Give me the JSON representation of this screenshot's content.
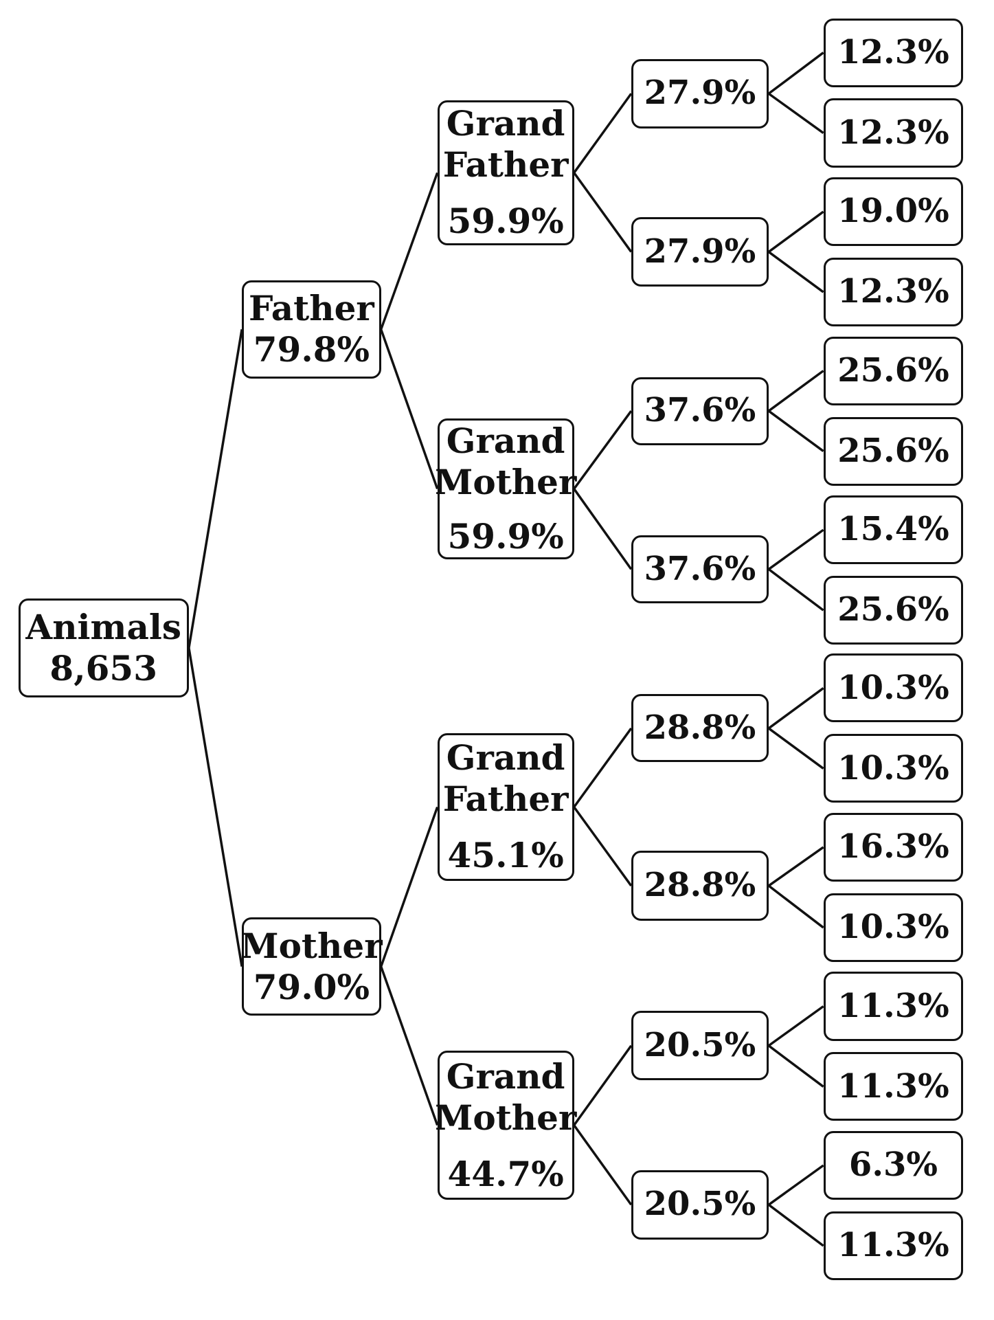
{
  "root": {
    "label": "Animals",
    "value": "8,653"
  },
  "parents": [
    {
      "label": "Father",
      "value": "79.8%",
      "grandparents": [
        {
          "label_1": "Grand",
          "label_2": "Father",
          "value": "59.9%",
          "great": [
            {
              "value": "27.9%",
              "leaves": [
                "12.3%",
                "12.3%"
              ]
            },
            {
              "value": "27.9%",
              "leaves": [
                "19.0%",
                "12.3%"
              ]
            }
          ]
        },
        {
          "label_1": "Grand",
          "label_2": "Mother",
          "value": "59.9%",
          "great": [
            {
              "value": "37.6%",
              "leaves": [
                "25.6%",
                "25.6%"
              ]
            },
            {
              "value": "37.6%",
              "leaves": [
                "15.4%",
                "25.6%"
              ]
            }
          ]
        }
      ]
    },
    {
      "label": "Mother",
      "value": "79.0%",
      "grandparents": [
        {
          "label_1": "Grand",
          "label_2": "Father",
          "value": "45.1%",
          "great": [
            {
              "value": "28.8%",
              "leaves": [
                "10.3%",
                "10.3%"
              ]
            },
            {
              "value": "28.8%",
              "leaves": [
                "16.3%",
                "10.3%"
              ]
            }
          ]
        },
        {
          "label_1": "Grand",
          "label_2": "Mother",
          "value": "44.7%",
          "great": [
            {
              "value": "20.5%",
              "leaves": [
                "11.3%",
                "11.3%"
              ]
            },
            {
              "value": "20.5%",
              "leaves": [
                "6.3%",
                "11.3%"
              ]
            }
          ]
        }
      ]
    }
  ]
}
